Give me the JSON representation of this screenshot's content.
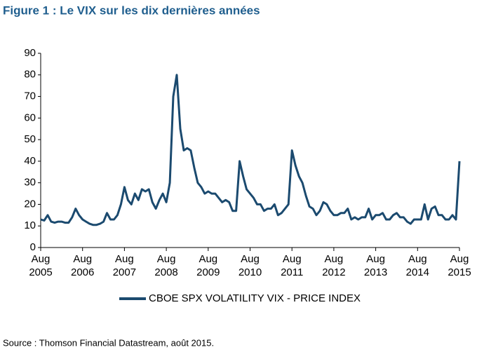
{
  "chart_data": {
    "type": "line",
    "title": "Figure 1 : Le VIX sur les dix dernières années",
    "source": "Source : Thomson Financial Datastream, août 2015.",
    "x": [
      "2005-08",
      "2005-09",
      "2005-10",
      "2005-11",
      "2005-12",
      "2006-01",
      "2006-02",
      "2006-03",
      "2006-04",
      "2006-05",
      "2006-06",
      "2006-07",
      "2006-08",
      "2006-09",
      "2006-10",
      "2006-11",
      "2006-12",
      "2007-01",
      "2007-02",
      "2007-03",
      "2007-04",
      "2007-05",
      "2007-06",
      "2007-07",
      "2007-08",
      "2007-09",
      "2007-10",
      "2007-11",
      "2007-12",
      "2008-01",
      "2008-02",
      "2008-03",
      "2008-04",
      "2008-05",
      "2008-06",
      "2008-07",
      "2008-08",
      "2008-09",
      "2008-10",
      "2008-11",
      "2008-12",
      "2009-01",
      "2009-02",
      "2009-03",
      "2009-04",
      "2009-05",
      "2009-06",
      "2009-07",
      "2009-08",
      "2009-09",
      "2009-10",
      "2009-11",
      "2009-12",
      "2010-01",
      "2010-02",
      "2010-03",
      "2010-04",
      "2010-05",
      "2010-06",
      "2010-07",
      "2010-08",
      "2010-09",
      "2010-10",
      "2010-11",
      "2010-12",
      "2011-01",
      "2011-02",
      "2011-03",
      "2011-04",
      "2011-05",
      "2011-06",
      "2011-07",
      "2011-08",
      "2011-09",
      "2011-10",
      "2011-11",
      "2011-12",
      "2012-01",
      "2012-02",
      "2012-03",
      "2012-04",
      "2012-05",
      "2012-06",
      "2012-07",
      "2012-08",
      "2012-09",
      "2012-10",
      "2012-11",
      "2012-12",
      "2013-01",
      "2013-02",
      "2013-03",
      "2013-04",
      "2013-05",
      "2013-06",
      "2013-07",
      "2013-08",
      "2013-09",
      "2013-10",
      "2013-11",
      "2013-12",
      "2014-01",
      "2014-02",
      "2014-03",
      "2014-04",
      "2014-05",
      "2014-06",
      "2014-07",
      "2014-08",
      "2014-09",
      "2014-10",
      "2014-11",
      "2014-12",
      "2015-01",
      "2015-02",
      "2015-03",
      "2015-04",
      "2015-05",
      "2015-06",
      "2015-07",
      "2015-08"
    ],
    "series": [
      {
        "name": "CBOE SPX VOLATILITY VIX - PRICE INDEX",
        "color": "#1b4a6f",
        "values": [
          13,
          12.5,
          15,
          12,
          11.5,
          12,
          12,
          11.5,
          11.5,
          14,
          18,
          15,
          13,
          12,
          11,
          10.5,
          10.5,
          11,
          12,
          16,
          13,
          13,
          15,
          20,
          28,
          22,
          20,
          25,
          22,
          27,
          26,
          27,
          21,
          18,
          22,
          25,
          21,
          30,
          70,
          80,
          55,
          45,
          46,
          45,
          37,
          30,
          28,
          25,
          26,
          25,
          25,
          23,
          21,
          22,
          21,
          17,
          17,
          40,
          33,
          27,
          25,
          23,
          20,
          20,
          17,
          18,
          18,
          20,
          15,
          16,
          18,
          20,
          45,
          38,
          33,
          30,
          24,
          19,
          18,
          15,
          17,
          21,
          20,
          17,
          15,
          15,
          16,
          16,
          18,
          13,
          14,
          13,
          14,
          14,
          18,
          13,
          15,
          15,
          16,
          13,
          13,
          15,
          16,
          14,
          14,
          12,
          11,
          13,
          13,
          13,
          20,
          13,
          18,
          19,
          15,
          15,
          13,
          13,
          15,
          13,
          40
        ]
      }
    ],
    "xlim": [
      "2005-08",
      "2015-08"
    ],
    "xticks": [
      {
        "value": "2005-08",
        "label": "Aug 2005"
      },
      {
        "value": "2006-08",
        "label": "Aug 2006"
      },
      {
        "value": "2007-08",
        "label": "Aug 2007"
      },
      {
        "value": "2008-08",
        "label": "Aug 2008"
      },
      {
        "value": "2009-08",
        "label": "Aug 2009"
      },
      {
        "value": "2010-08",
        "label": "Aug 2010"
      },
      {
        "value": "2011-08",
        "label": "Aug 2011"
      },
      {
        "value": "2012-08",
        "label": "Aug 2012"
      },
      {
        "value": "2013-08",
        "label": "Aug 2013"
      },
      {
        "value": "2014-08",
        "label": "Aug 2014"
      },
      {
        "value": "2015-08",
        "label": "Aug 2015"
      }
    ],
    "ylim": [
      0,
      90
    ],
    "yticks": [
      0,
      10,
      20,
      30,
      40,
      50,
      60,
      70,
      80,
      90
    ],
    "grid": false,
    "legend": "bottom"
  }
}
